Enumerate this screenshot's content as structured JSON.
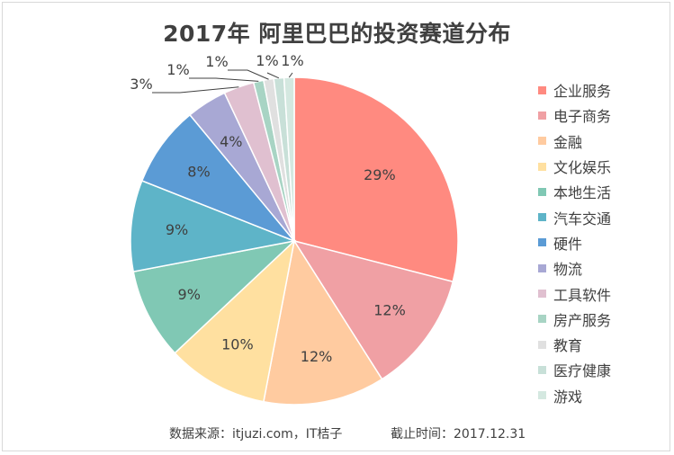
{
  "chart_data": {
    "type": "pie",
    "title": "2017年 阿里巴巴的投资赛道分布",
    "categories": [
      "企业服务",
      "电子商务",
      "金融",
      "文化娱乐",
      "本地生活",
      "汽车交通",
      "硬件",
      "物流",
      "工具软件",
      "房产服务",
      "教育",
      "医疗健康",
      "游戏"
    ],
    "values": [
      29,
      12,
      12,
      10,
      9,
      9,
      8,
      4,
      3,
      1,
      1,
      1,
      1
    ],
    "labels": [
      "29%",
      "12%",
      "12%",
      "10%",
      "9%",
      "9%",
      "8%",
      "4%",
      "3%",
      "1%",
      "1%",
      "1%",
      "1%"
    ],
    "colors": [
      "#FF8A80",
      "#F0A0A4",
      "#FFCBA0",
      "#FFE0A0",
      "#80C8B4",
      "#5EB4C8",
      "#5B9BD5",
      "#A8A8D4",
      "#E0C0D0",
      "#A8D4C4",
      "#E0E0E0",
      "#C8E0D8",
      "#D4E8E0"
    ],
    "legend_position": "right"
  },
  "footer": {
    "source": "数据来源：itjuzi.com，IT桔子",
    "cutoff": "截止时间：2017.12.31"
  }
}
